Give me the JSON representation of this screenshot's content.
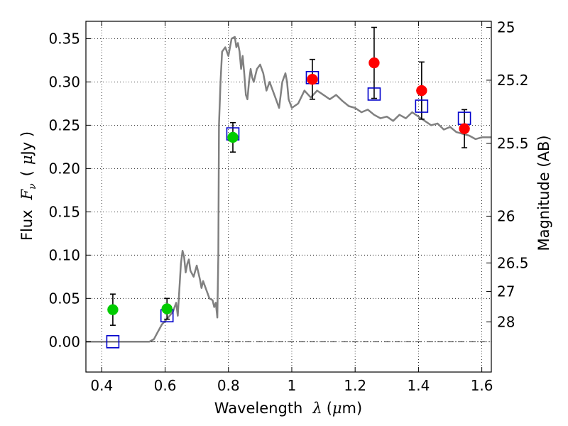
{
  "chart_data": {
    "type": "scatter",
    "xlabel": {
      "prefix": "Wavelength",
      "symbol": "λ",
      "unit_open": "(",
      "unit_mu": "μ",
      "unit_rest": "m)"
    },
    "ylabel": {
      "prefix": "Flux",
      "symbol": "F",
      "subscript": "ν",
      "unit_open": "(",
      "unit_mu": "μ",
      "unit_rest": "Jy )"
    },
    "y2label": "Magnitude (AB)",
    "xlim": [
      0.35,
      1.63
    ],
    "ylim": [
      -0.035,
      0.37
    ],
    "grid": true,
    "x_ticks": [
      {
        "value": 0.4,
        "label": "0.4"
      },
      {
        "value": 0.6,
        "label": "0.6"
      },
      {
        "value": 0.8,
        "label": "0.8"
      },
      {
        "value": 1.0,
        "label": "1"
      },
      {
        "value": 1.2,
        "label": "1.2"
      },
      {
        "value": 1.4,
        "label": "1.4"
      },
      {
        "value": 1.6,
        "label": "1.6"
      }
    ],
    "y_ticks": [
      {
        "value": 0.0,
        "label": "0.00"
      },
      {
        "value": 0.05,
        "label": "0.05"
      },
      {
        "value": 0.1,
        "label": "0.10"
      },
      {
        "value": 0.15,
        "label": "0.15"
      },
      {
        "value": 0.2,
        "label": "0.20"
      },
      {
        "value": 0.25,
        "label": "0.25"
      },
      {
        "value": 0.3,
        "label": "0.30"
      },
      {
        "value": 0.35,
        "label": "0.35"
      }
    ],
    "y2_ticks": [
      {
        "flux": 0.363,
        "label": "25"
      },
      {
        "flux": 0.302,
        "label": "25.2"
      },
      {
        "flux": 0.229,
        "label": "25.5"
      },
      {
        "flux": 0.145,
        "label": "26"
      },
      {
        "flux": 0.091,
        "label": "26.5"
      },
      {
        "flux": 0.058,
        "label": "27"
      },
      {
        "flux": 0.023,
        "label": "28"
      }
    ],
    "zero_line": 0,
    "model_spectrum": {
      "color": "#808080",
      "x": [
        0.35,
        0.4,
        0.45,
        0.5,
        0.55,
        0.565,
        0.575,
        0.59,
        0.61,
        0.625,
        0.635,
        0.64,
        0.645,
        0.65,
        0.655,
        0.66,
        0.665,
        0.67,
        0.675,
        0.68,
        0.69,
        0.7,
        0.71,
        0.715,
        0.72,
        0.73,
        0.74,
        0.75,
        0.755,
        0.76,
        0.765,
        0.768,
        0.77,
        0.775,
        0.78,
        0.79,
        0.8,
        0.81,
        0.82,
        0.825,
        0.83,
        0.835,
        0.84,
        0.845,
        0.85,
        0.855,
        0.86,
        0.865,
        0.87,
        0.875,
        0.88,
        0.89,
        0.9,
        0.91,
        0.92,
        0.93,
        0.94,
        0.95,
        0.96,
        0.97,
        0.98,
        0.985,
        0.99,
        1.0,
        1.02,
        1.04,
        1.06,
        1.08,
        1.1,
        1.12,
        1.14,
        1.16,
        1.18,
        1.2,
        1.22,
        1.24,
        1.26,
        1.28,
        1.3,
        1.32,
        1.34,
        1.36,
        1.38,
        1.4,
        1.42,
        1.44,
        1.46,
        1.48,
        1.5,
        1.52,
        1.54,
        1.56,
        1.58,
        1.6,
        1.63
      ],
      "y": [
        0.0,
        0.0,
        0.0,
        0.0,
        0.0,
        0.003,
        0.01,
        0.02,
        0.028,
        0.035,
        0.045,
        0.03,
        0.06,
        0.09,
        0.105,
        0.098,
        0.08,
        0.09,
        0.095,
        0.082,
        0.075,
        0.088,
        0.072,
        0.062,
        0.07,
        0.06,
        0.05,
        0.048,
        0.04,
        0.045,
        0.028,
        0.1,
        0.25,
        0.3,
        0.335,
        0.34,
        0.33,
        0.35,
        0.352,
        0.34,
        0.345,
        0.335,
        0.315,
        0.33,
        0.31,
        0.285,
        0.28,
        0.3,
        0.315,
        0.305,
        0.3,
        0.315,
        0.32,
        0.31,
        0.29,
        0.3,
        0.29,
        0.28,
        0.27,
        0.3,
        0.31,
        0.3,
        0.28,
        0.27,
        0.275,
        0.29,
        0.282,
        0.29,
        0.285,
        0.28,
        0.285,
        0.278,
        0.272,
        0.27,
        0.265,
        0.268,
        0.262,
        0.258,
        0.26,
        0.255,
        0.262,
        0.258,
        0.265,
        0.26,
        0.255,
        0.25,
        0.252,
        0.245,
        0.248,
        0.242,
        0.24,
        0.238,
        0.234,
        0.236,
        0.236
      ]
    },
    "model_photometry": {
      "marker": "open-square",
      "color": "#0000cc",
      "points": [
        {
          "x": 0.435,
          "y": 0.0
        },
        {
          "x": 0.606,
          "y": 0.03
        },
        {
          "x": 0.814,
          "y": 0.24
        },
        {
          "x": 1.065,
          "y": 0.305
        },
        {
          "x": 1.26,
          "y": 0.286
        },
        {
          "x": 1.41,
          "y": 0.272
        },
        {
          "x": 1.545,
          "y": 0.258
        }
      ]
    },
    "observed_photometry": [
      {
        "x": 0.435,
        "y": 0.037,
        "err": 0.018,
        "color": "#00cc00"
      },
      {
        "x": 0.606,
        "y": 0.038,
        "err": 0.012,
        "color": "#00cc00"
      },
      {
        "x": 0.814,
        "y": 0.236,
        "err": 0.017,
        "color": "#00cc00"
      },
      {
        "x": 1.065,
        "y": 0.303,
        "err": 0.023,
        "color": "#ff0000"
      },
      {
        "x": 1.26,
        "y": 0.322,
        "err": 0.041,
        "color": "#ff0000"
      },
      {
        "x": 1.41,
        "y": 0.29,
        "err": 0.033,
        "color": "#ff0000"
      },
      {
        "x": 1.545,
        "y": 0.246,
        "err": 0.022,
        "color": "#ff0000"
      }
    ]
  }
}
